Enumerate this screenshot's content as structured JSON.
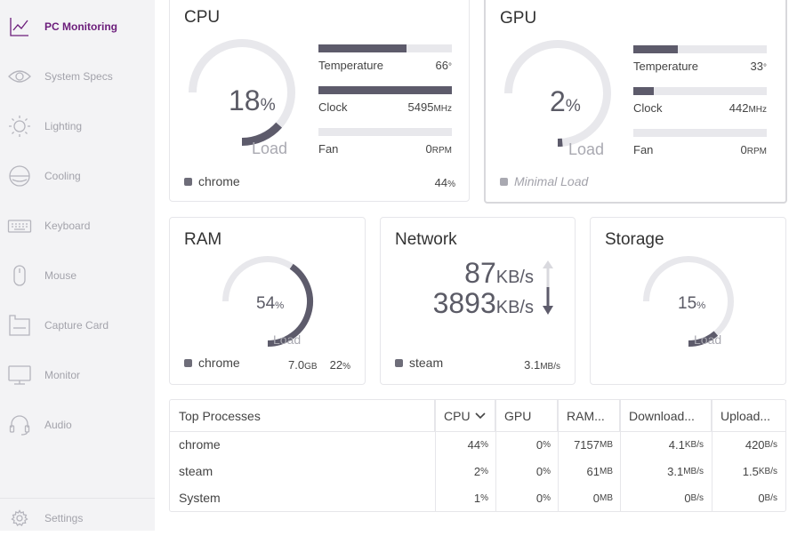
{
  "sidebar": {
    "items": [
      {
        "label": "PC Monitoring",
        "icon": "chart-line-icon",
        "active": true
      },
      {
        "label": "System Specs",
        "icon": "eye-icon"
      },
      {
        "label": "Lighting",
        "icon": "sun-icon"
      },
      {
        "label": "Cooling",
        "icon": "cooling-icon"
      },
      {
        "label": "Keyboard",
        "icon": "keyboard-icon"
      },
      {
        "label": "Mouse",
        "icon": "mouse-icon"
      },
      {
        "label": "Capture Card",
        "icon": "capture-card-icon"
      },
      {
        "label": "Monitor",
        "icon": "monitor-icon"
      },
      {
        "label": "Audio",
        "icon": "headset-icon"
      }
    ],
    "settings_label": "Settings"
  },
  "cpu": {
    "title": "CPU",
    "value": "18",
    "unit": "%",
    "load_label": "Load",
    "load_fraction": 0.18,
    "metrics": [
      {
        "name": "Temperature",
        "value": "66",
        "unit": "°",
        "fraction": 0.66
      },
      {
        "name": "Clock",
        "value": "5495",
        "unit": "MHz",
        "fraction": 1.0
      },
      {
        "name": "Fan",
        "value": "0",
        "unit": "RPM",
        "fraction": 0.0
      }
    ],
    "top_process": "chrome",
    "top_process_value": "44",
    "top_process_unit": "%"
  },
  "gpu": {
    "title": "GPU",
    "value": "2",
    "unit": "%",
    "load_label": "Load",
    "load_fraction": 0.02,
    "metrics": [
      {
        "name": "Temperature",
        "value": "33",
        "unit": "°",
        "fraction": 0.33
      },
      {
        "name": "Clock",
        "value": "442",
        "unit": "MHz",
        "fraction": 0.15
      },
      {
        "name": "Fan",
        "value": "0",
        "unit": "RPM",
        "fraction": 0.0
      }
    ],
    "status": "Minimal Load"
  },
  "ram": {
    "title": "RAM",
    "value": "54",
    "unit": "%",
    "load_label": "Load",
    "load_fraction": 0.54,
    "top_process": "chrome",
    "top_process_amount": "7.0",
    "top_process_amount_unit": "GB",
    "top_process_value": "22",
    "top_process_unit": "%"
  },
  "network": {
    "title": "Network",
    "upload_value": "87",
    "upload_unit": "KB/s",
    "download_value": "3893",
    "download_unit": "KB/s",
    "top_process": "steam",
    "top_process_value": "3.1",
    "top_process_unit": "MB/s"
  },
  "storage": {
    "title": "Storage",
    "value": "15",
    "unit": "%",
    "load_label": "Load",
    "load_fraction": 0.15
  },
  "table": {
    "headers": [
      "Top Processes",
      "CPU",
      "GPU",
      "RAM...",
      "Download...",
      "Upload..."
    ],
    "sort_column": "CPU",
    "rows": [
      {
        "name": "chrome",
        "cpu": "44",
        "cpu_u": "%",
        "gpu": "0",
        "gpu_u": "%",
        "ram": "7157",
        "ram_u": "MB",
        "down": "4.1",
        "down_u": "KB/s",
        "up": "420",
        "up_u": "B/s"
      },
      {
        "name": "steam",
        "cpu": "2",
        "cpu_u": "%",
        "gpu": "0",
        "gpu_u": "%",
        "ram": "61",
        "ram_u": "MB",
        "down": "3.1",
        "down_u": "MB/s",
        "up": "1.5",
        "up_u": "KB/s"
      },
      {
        "name": "System",
        "cpu": "1",
        "cpu_u": "%",
        "gpu": "0",
        "gpu_u": "%",
        "ram": "0",
        "ram_u": "MB",
        "down": "0",
        "down_u": "B/s",
        "up": "0",
        "up_u": "B/s"
      }
    ]
  },
  "colors": {
    "accent": "#6b1c7a",
    "gauge_fill": "#5d5b6b",
    "gauge_track": "#e8e8ec"
  }
}
